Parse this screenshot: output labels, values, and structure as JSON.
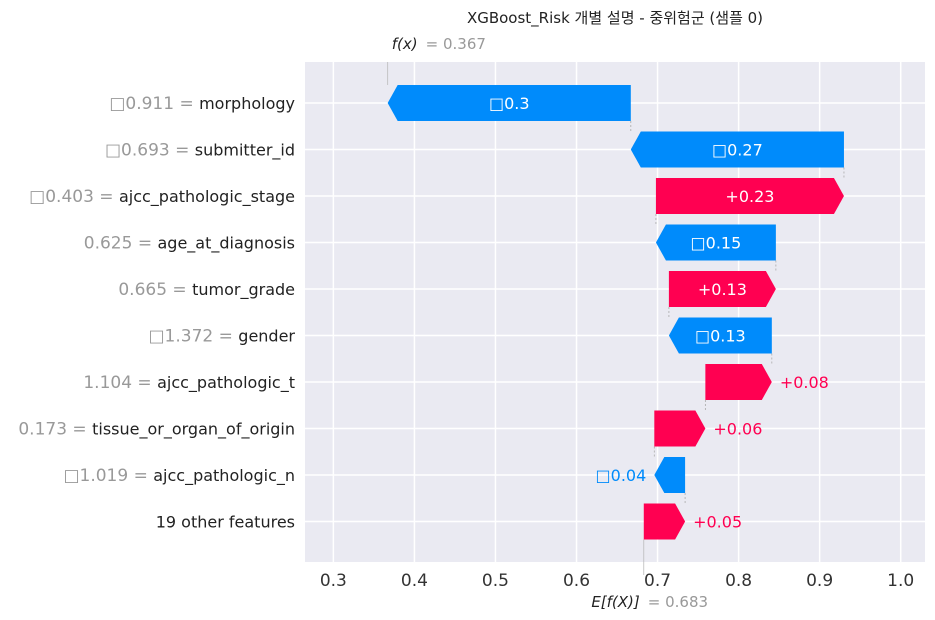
{
  "chart_data": {
    "type": "waterfall",
    "title": "XGBoost_Risk 개별 설명 - 중위험군 (샘플 0)",
    "fx": {
      "label": "f(x)",
      "value_text": "= 0.367",
      "value": 0.367
    },
    "base": {
      "label": "E[f(X)]",
      "value_text": "= 0.683",
      "value": 0.683
    },
    "xlim": [
      0.265,
      1.03
    ],
    "xticks": [
      {
        "value": 0.3,
        "label": "0.3"
      },
      {
        "value": 0.4,
        "label": "0.4"
      },
      {
        "value": 0.5,
        "label": "0.5"
      },
      {
        "value": 0.6,
        "label": "0.6"
      },
      {
        "value": 0.7,
        "label": "0.7"
      },
      {
        "value": 0.8,
        "label": "0.8"
      },
      {
        "value": 0.9,
        "label": "0.9"
      },
      {
        "value": 1.0,
        "label": "1.0"
      }
    ],
    "colors": {
      "positive": "#ff0051",
      "negative": "#008bfb",
      "background": "#eaeaf2"
    },
    "features": [
      {
        "value": "□0.911 =",
        "name": "morphology",
        "start": 0.667,
        "end": 0.367,
        "label": "□0.3"
      },
      {
        "value": "□0.693 =",
        "name": "submitter_id",
        "start": 0.93,
        "end": 0.667,
        "label": "□0.27"
      },
      {
        "value": "□0.403 =",
        "name": "ajcc_pathologic_stage",
        "start": 0.698,
        "end": 0.93,
        "label": "+0.23"
      },
      {
        "value": "0.625 =",
        "name": "age_at_diagnosis",
        "start": 0.846,
        "end": 0.698,
        "label": "□0.15"
      },
      {
        "value": "0.665 =",
        "name": "tumor_grade",
        "start": 0.714,
        "end": 0.846,
        "label": "+0.13"
      },
      {
        "value": "□1.372 =",
        "name": "gender",
        "start": 0.841,
        "end": 0.714,
        "label": "□0.13"
      },
      {
        "value": "1.104 =",
        "name": "ajcc_pathologic_t",
        "start": 0.759,
        "end": 0.841,
        "label": "+0.08"
      },
      {
        "value": "0.173 =",
        "name": "tissue_or_organ_of_origin",
        "start": 0.696,
        "end": 0.759,
        "label": "+0.06"
      },
      {
        "value": "□1.019 =",
        "name": "ajcc_pathologic_n",
        "start": 0.734,
        "end": 0.696,
        "label": "□0.04"
      },
      {
        "value": "",
        "name": "19 other features",
        "start": 0.683,
        "end": 0.734,
        "label": "+0.05"
      }
    ]
  }
}
